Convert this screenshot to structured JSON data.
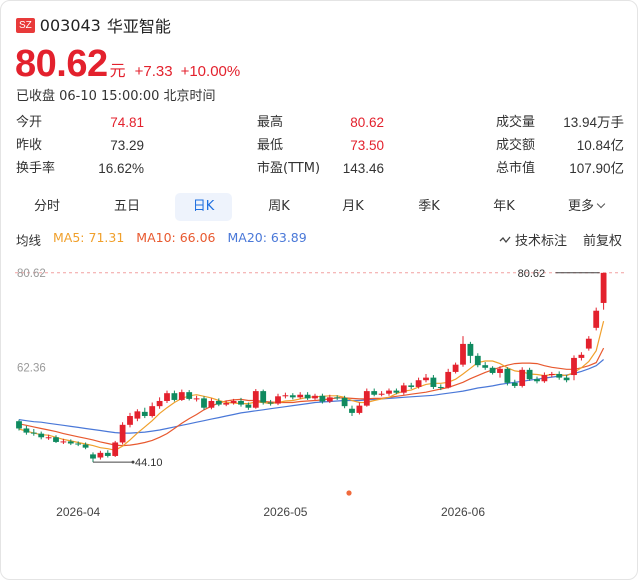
{
  "header": {
    "market_badge": "SZ",
    "code": "003043",
    "name": "华亚智能"
  },
  "quote": {
    "price": "80.62",
    "unit": "元",
    "change": "+7.33",
    "change_pct": "+10.00%",
    "status": "已收盘 06-10 15:00:00 北京时间"
  },
  "stats": [
    {
      "label": "今开",
      "value": "74.81",
      "color": "#e3212d"
    },
    {
      "label": "最高",
      "value": "80.62",
      "color": "#e3212d"
    },
    {
      "label": "成交量",
      "value": "13.94万手",
      "color": "#333333"
    },
    {
      "label": "昨收",
      "value": "73.29",
      "color": "#333333"
    },
    {
      "label": "最低",
      "value": "73.50",
      "color": "#e3212d"
    },
    {
      "label": "成交额",
      "value": "10.84亿",
      "color": "#333333"
    },
    {
      "label": "换手率",
      "value": "16.62%",
      "color": "#333333"
    },
    {
      "label": "市盈(TTM)",
      "value": "143.46",
      "color": "#333333"
    },
    {
      "label": "总市值",
      "value": "107.90亿",
      "color": "#333333"
    }
  ],
  "tabs": [
    {
      "label": "分时",
      "active": false
    },
    {
      "label": "五日",
      "active": false
    },
    {
      "label": "日K",
      "active": true
    },
    {
      "label": "周K",
      "active": false
    },
    {
      "label": "月K",
      "active": false
    },
    {
      "label": "季K",
      "active": false
    },
    {
      "label": "年K",
      "active": false
    },
    {
      "label": "更多",
      "active": false
    }
  ],
  "indicators": {
    "title": "均线",
    "ma5": "MA5: 71.31",
    "ma10": "MA10: 66.06",
    "ma20": "MA20: 63.89",
    "ma5_color": "#f0a02c",
    "ma10_color": "#e8592f",
    "ma20_color": "#4a78d8",
    "tech_label": "技术标注",
    "adjust_label": "前复权"
  },
  "chart_data": {
    "type": "candlestick",
    "up_color": "#e3212d",
    "down_color": "#0f8a5f",
    "ylim": [
      37.0,
      82.5
    ],
    "y_ticks": [
      "80.62",
      "62.36"
    ],
    "x_ticks": [
      "2026-04",
      "2026-05",
      "2026-06"
    ],
    "x_tick_positions": [
      8,
      36,
      60
    ],
    "max_label": "80.62",
    "max_index": 79,
    "min_label": "44.10",
    "min_index": 10,
    "candles": [
      [
        52.0,
        50.6,
        52.3,
        50.2
      ],
      [
        50.6,
        49.8,
        51.1,
        49.4
      ],
      [
        49.8,
        49.7,
        50.5,
        49.2
      ],
      [
        49.6,
        48.9,
        50.0,
        48.5
      ],
      [
        48.9,
        48.9,
        49.4,
        48.4
      ],
      [
        48.9,
        48.0,
        49.3,
        47.8
      ],
      [
        48.0,
        48.1,
        48.6,
        47.6
      ],
      [
        48.1,
        47.7,
        48.5,
        47.4
      ],
      [
        47.7,
        47.5,
        48.1,
        47.2
      ],
      [
        47.5,
        46.9,
        47.9,
        46.6
      ],
      [
        45.6,
        44.8,
        46.0,
        44.1
      ],
      [
        45.0,
        45.9,
        46.3,
        44.6
      ],
      [
        45.9,
        45.3,
        46.4,
        45.0
      ],
      [
        45.3,
        47.9,
        48.2,
        45.1
      ],
      [
        47.9,
        51.3,
        51.8,
        47.5
      ],
      [
        51.3,
        53.0,
        53.6,
        50.8
      ],
      [
        52.5,
        53.9,
        54.3,
        52.0
      ],
      [
        53.8,
        53.0,
        54.6,
        52.6
      ],
      [
        53.0,
        54.9,
        55.6,
        52.7
      ],
      [
        54.9,
        55.9,
        56.6,
        54.4
      ],
      [
        55.9,
        57.4,
        57.9,
        55.5
      ],
      [
        57.4,
        56.1,
        57.9,
        55.8
      ],
      [
        56.1,
        57.6,
        58.1,
        55.9
      ],
      [
        57.6,
        56.3,
        58.0,
        56.0
      ],
      [
        56.3,
        56.4,
        56.9,
        55.8
      ],
      [
        56.4,
        54.6,
        56.8,
        54.2
      ],
      [
        54.6,
        55.9,
        56.4,
        54.3
      ],
      [
        55.9,
        55.2,
        56.4,
        54.9
      ],
      [
        55.2,
        55.5,
        56.0,
        54.9
      ],
      [
        55.5,
        55.9,
        56.3,
        55.2
      ],
      [
        55.9,
        55.2,
        56.5,
        54.8
      ],
      [
        55.2,
        54.6,
        55.6,
        54.2
      ],
      [
        54.6,
        57.8,
        58.2,
        54.4
      ],
      [
        57.8,
        55.6,
        58.1,
        55.2
      ],
      [
        55.6,
        55.4,
        56.1,
        55.0
      ],
      [
        55.4,
        56.8,
        57.3,
        55.1
      ],
      [
        56.8,
        57.0,
        57.5,
        56.4
      ],
      [
        57.0,
        56.6,
        57.4,
        56.2
      ],
      [
        56.6,
        57.1,
        57.6,
        56.3
      ],
      [
        57.1,
        56.4,
        57.6,
        56.1
      ],
      [
        56.4,
        56.9,
        57.3,
        56.1
      ],
      [
        56.9,
        55.8,
        57.3,
        55.4
      ],
      [
        55.8,
        56.6,
        57.1,
        55.5
      ],
      [
        56.6,
        56.5,
        57.0,
        56.1
      ],
      [
        56.5,
        54.9,
        56.9,
        54.5
      ],
      [
        54.4,
        53.6,
        55.0,
        53.0
      ],
      [
        53.6,
        55.0,
        55.6,
        53.3
      ],
      [
        55.0,
        57.8,
        58.3,
        54.8
      ],
      [
        57.8,
        57.1,
        58.3,
        56.8
      ],
      [
        57.1,
        57.3,
        57.8,
        56.8
      ],
      [
        57.3,
        57.9,
        58.3,
        56.9
      ],
      [
        57.9,
        57.5,
        58.3,
        57.2
      ],
      [
        57.5,
        58.9,
        59.4,
        57.1
      ],
      [
        58.9,
        58.6,
        59.4,
        58.2
      ],
      [
        58.6,
        59.9,
        60.4,
        58.3
      ],
      [
        59.9,
        60.4,
        61.1,
        59.5
      ],
      [
        60.4,
        58.6,
        60.9,
        58.2
      ],
      [
        58.6,
        58.5,
        59.1,
        58.0
      ],
      [
        58.5,
        61.5,
        62.1,
        58.3
      ],
      [
        61.5,
        62.9,
        63.3,
        61.2
      ],
      [
        62.9,
        66.9,
        68.4,
        62.5
      ],
      [
        66.9,
        64.6,
        67.3,
        63.2
      ],
      [
        64.6,
        62.8,
        65.1,
        62.4
      ],
      [
        62.8,
        62.3,
        63.4,
        61.9
      ],
      [
        62.3,
        61.3,
        62.6,
        61.0
      ],
      [
        61.3,
        62.1,
        62.6,
        60.4
      ],
      [
        62.1,
        59.4,
        62.4,
        58.9
      ],
      [
        59.4,
        58.8,
        60.0,
        58.4
      ],
      [
        58.8,
        61.9,
        62.4,
        58.5
      ],
      [
        61.9,
        60.1,
        62.3,
        59.8
      ],
      [
        60.1,
        59.7,
        60.6,
        59.3
      ],
      [
        59.7,
        60.9,
        61.4,
        59.4
      ],
      [
        60.9,
        61.1,
        61.5,
        60.5
      ],
      [
        61.1,
        60.4,
        61.6,
        60.0
      ],
      [
        60.4,
        59.9,
        60.9,
        59.5
      ],
      [
        60.9,
        64.2,
        64.7,
        59.9
      ],
      [
        64.2,
        64.8,
        65.3,
        63.7
      ],
      [
        66.0,
        67.9,
        68.4,
        65.6
      ],
      [
        70.0,
        73.3,
        73.9,
        69.5
      ],
      [
        74.8,
        80.6,
        80.6,
        73.5
      ]
    ],
    "ma5": [
      50.5,
      50.1,
      49.7,
      49.4,
      49.3,
      48.9,
      48.5,
      48.2,
      47.9,
      47.6,
      47.3,
      46.9,
      46.7,
      46.4,
      47.2,
      48.4,
      49.7,
      50.9,
      52.1,
      53.5,
      54.6,
      55.6,
      56.4,
      56.9,
      57.1,
      56.8,
      56.5,
      56.0,
      55.6,
      55.5,
      55.4,
      55.4,
      55.7,
      55.6,
      55.4,
      55.6,
      55.9,
      56.0,
      56.3,
      56.6,
      56.7,
      56.8,
      56.9,
      56.9,
      56.6,
      56.0,
      55.6,
      55.6,
      56.0,
      56.3,
      56.6,
      57.3,
      57.8,
      58.0,
      58.6,
      59.1,
      59.3,
      59.3,
      59.5,
      60.1,
      61.1,
      62.2,
      63.3,
      63.6,
      63.6,
      63.1,
      62.3,
      61.7,
      61.5,
      61.1,
      61.0,
      60.8,
      61.0,
      61.0,
      60.8,
      61.4,
      62.3,
      63.5,
      65.6,
      71.3
    ],
    "ma10": [
      51.5,
      51.2,
      50.9,
      50.6,
      50.3,
      50.0,
      49.6,
      49.3,
      49.0,
      48.7,
      48.4,
      48.0,
      47.7,
      47.4,
      47.3,
      47.4,
      47.6,
      47.9,
      48.3,
      48.9,
      49.6,
      50.6,
      51.6,
      52.5,
      53.3,
      54.2,
      54.9,
      55.5,
      55.9,
      56.1,
      56.2,
      56.0,
      56.0,
      55.8,
      55.7,
      55.6,
      55.6,
      55.6,
      55.8,
      55.9,
      56.0,
      56.1,
      56.3,
      56.5,
      56.5,
      56.4,
      56.3,
      56.3,
      56.4,
      56.4,
      56.6,
      56.8,
      57.0,
      57.2,
      57.4,
      57.6,
      57.9,
      58.2,
      58.5,
      59.0,
      59.5,
      60.2,
      60.8,
      61.4,
      61.9,
      62.4,
      62.8,
      63.1,
      63.2,
      63.2,
      63.1,
      62.7,
      62.4,
      62.2,
      62.0,
      62.0,
      62.3,
      62.7,
      63.3,
      66.1
    ],
    "ma20": [
      52.3,
      52.1,
      51.9,
      51.8,
      51.6,
      51.4,
      51.2,
      51.0,
      50.8,
      50.6,
      50.4,
      50.2,
      50.0,
      49.8,
      49.7,
      49.7,
      49.8,
      49.9,
      50.1,
      50.3,
      50.6,
      50.9,
      51.2,
      51.5,
      51.8,
      52.1,
      52.4,
      52.7,
      53.0,
      53.3,
      53.6,
      53.8,
      54.0,
      54.2,
      54.4,
      54.6,
      54.8,
      55.0,
      55.2,
      55.4,
      55.6,
      55.7,
      55.8,
      55.9,
      56.0,
      56.0,
      56.0,
      56.1,
      56.2,
      56.3,
      56.4,
      56.5,
      56.6,
      56.7,
      56.8,
      56.9,
      57.0,
      57.2,
      57.4,
      57.6,
      57.8,
      58.1,
      58.4,
      58.6,
      58.8,
      59.1,
      59.3,
      59.5,
      59.7,
      59.9,
      60.1,
      60.3,
      60.5,
      60.7,
      60.9,
      61.2,
      61.6,
      62.1,
      62.7,
      63.9
    ]
  }
}
